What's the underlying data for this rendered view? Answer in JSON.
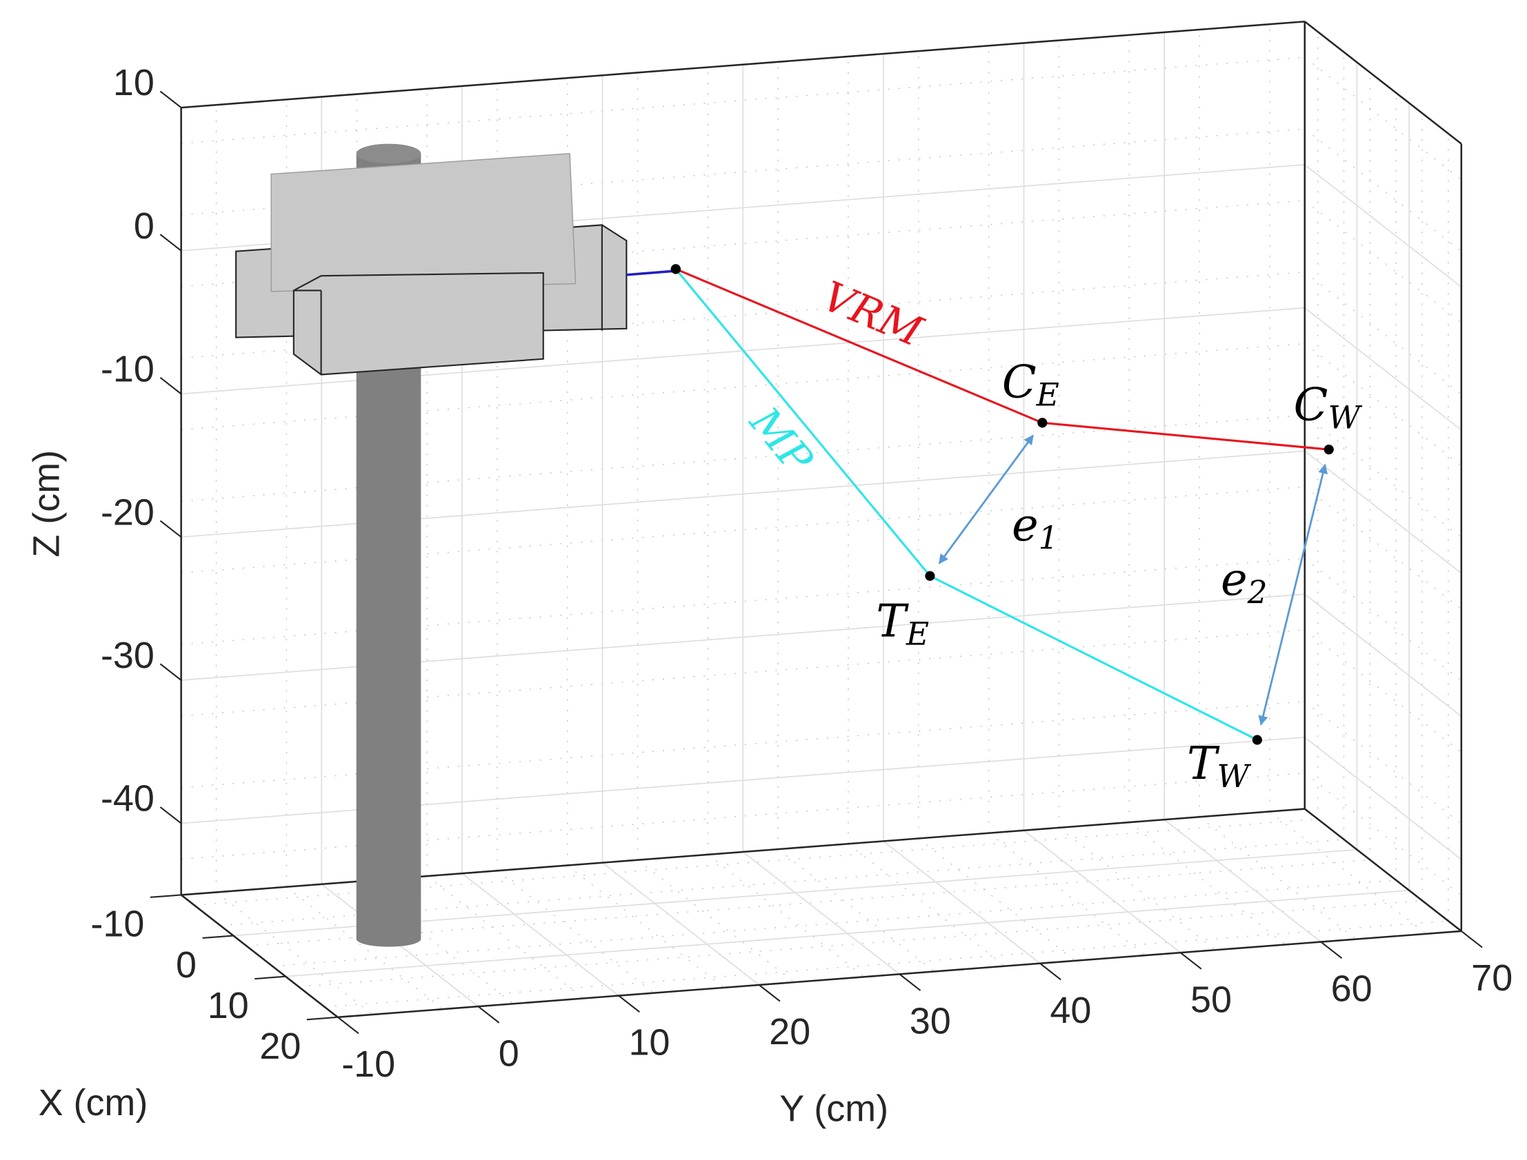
{
  "chart_data": {
    "type": "line3d",
    "xlabel": "X (cm)",
    "ylabel": "Y (cm)",
    "zlabel": "Z (cm)",
    "xlim": [
      -10,
      20
    ],
    "ylim": [
      -10,
      70
    ],
    "zlim": [
      -45,
      10
    ],
    "xticks": [
      -10,
      0,
      10,
      20
    ],
    "yticks": [
      -10,
      0,
      10,
      20,
      30,
      40,
      50,
      60,
      70
    ],
    "zticks": [
      -40,
      -30,
      -20,
      -10,
      0,
      10
    ],
    "grid": true,
    "series": [
      {
        "name": "VRM",
        "color": "#e8141e",
        "x": [
          0,
          0,
          0
        ],
        "y": [
          21.5,
          47.6,
          68
        ],
        "z": [
          -0.8,
          -13.5,
          -16.9
        ],
        "point_labels": [
          null,
          {
            "main": "C",
            "sub": "E"
          },
          {
            "main": "C",
            "sub": "W"
          }
        ]
      },
      {
        "name": "MP",
        "color": "#2ee6e6",
        "x": [
          0,
          0,
          0
        ],
        "y": [
          21.5,
          39.6,
          62.9
        ],
        "z": [
          -0.8,
          -23.6,
          -36.8
        ],
        "point_labels": [
          null,
          {
            "main": "T",
            "sub": "E"
          },
          {
            "main": "T",
            "sub": "W"
          }
        ]
      }
    ],
    "annotations": [
      {
        "main": "e",
        "sub": "1"
      },
      {
        "main": "e",
        "sub": "2"
      }
    ]
  }
}
